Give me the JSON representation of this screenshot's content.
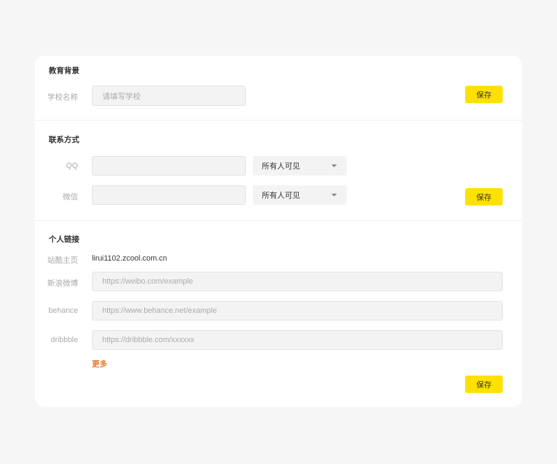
{
  "education": {
    "title": "教育背景",
    "school_label": "学校名称",
    "school_placeholder": "请填写学校",
    "save": "保存"
  },
  "contact": {
    "title": "联系方式",
    "qq_label": "QQ",
    "qq_value": "",
    "qq_visibility": "所有人可见",
    "wechat_label": "微信",
    "wechat_value": "",
    "wechat_visibility": "所有人可见",
    "save": "保存"
  },
  "links": {
    "title": "个人链接",
    "zcool_label": "站酷主页",
    "zcool_value": "lirui1102.zcool.com.cn",
    "weibo_label": "新浪微博",
    "weibo_placeholder": "https://weibo.com/example",
    "behance_label": "behance",
    "behance_placeholder": "https://www.behance.net/example",
    "dribbble_label": "dribbble",
    "dribbble_placeholder": "https://dribbble.com/xxxxxx",
    "more": "更多",
    "save": "保存"
  },
  "colors": {
    "accent": "#ffe100",
    "link": "#e8772e",
    "background": "#f6f6f6"
  }
}
